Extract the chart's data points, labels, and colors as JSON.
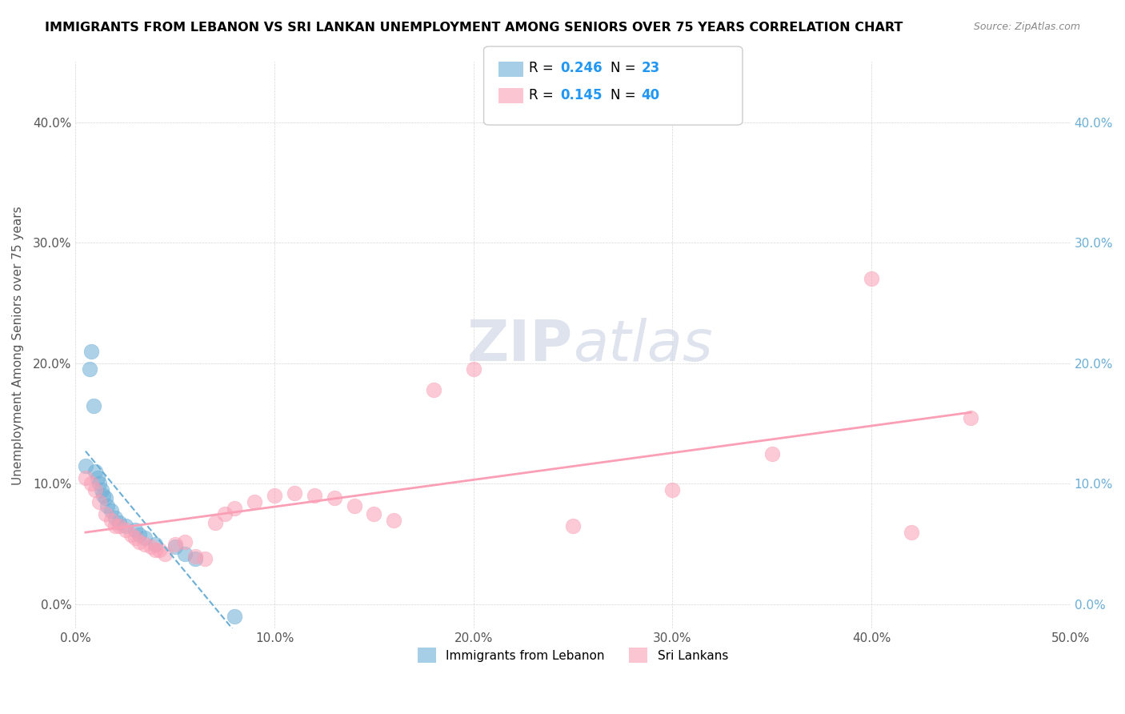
{
  "title": "IMMIGRANTS FROM LEBANON VS SRI LANKAN UNEMPLOYMENT AMONG SENIORS OVER 75 YEARS CORRELATION CHART",
  "source": "Source: ZipAtlas.com",
  "xlabel": "",
  "ylabel": "Unemployment Among Seniors over 75 years",
  "xlim": [
    0.0,
    0.5
  ],
  "ylim": [
    -0.02,
    0.45
  ],
  "yticks": [
    0.0,
    0.1,
    0.2,
    0.3,
    0.4
  ],
  "ytick_labels": [
    "0.0%",
    "10.0%",
    "20.0%",
    "30.0%",
    "40.0%"
  ],
  "xticks": [
    0.0,
    0.1,
    0.2,
    0.3,
    0.4,
    0.5
  ],
  "xtick_labels": [
    "0.0%",
    "10.0%",
    "20.0%",
    "30.0%",
    "40.0%",
    "50.0%"
  ],
  "legend_items": [
    "Immigrants from Lebanon",
    "Sri Lankans"
  ],
  "r_lebanon": 0.246,
  "n_lebanon": 23,
  "r_srilanka": 0.145,
  "n_srilanka": 40,
  "color_lebanon": "#6baed6",
  "color_srilanka": "#fa9fb5",
  "lebanon_x": [
    0.005,
    0.007,
    0.008,
    0.009,
    0.01,
    0.011,
    0.012,
    0.013,
    0.014,
    0.015,
    0.016,
    0.018,
    0.02,
    0.022,
    0.025,
    0.03,
    0.032,
    0.035,
    0.04,
    0.05,
    0.055,
    0.06,
    0.08
  ],
  "lebanon_y": [
    0.115,
    0.195,
    0.21,
    0.165,
    0.11,
    0.105,
    0.1,
    0.095,
    0.09,
    0.088,
    0.082,
    0.078,
    0.072,
    0.068,
    0.065,
    0.062,
    0.058,
    0.055,
    0.05,
    0.048,
    0.042,
    0.038,
    -0.01
  ],
  "srilanka_x": [
    0.005,
    0.008,
    0.01,
    0.012,
    0.015,
    0.018,
    0.02,
    0.022,
    0.025,
    0.028,
    0.03,
    0.032,
    0.035,
    0.038,
    0.04,
    0.042,
    0.045,
    0.05,
    0.055,
    0.06,
    0.065,
    0.07,
    0.075,
    0.08,
    0.09,
    0.1,
    0.11,
    0.12,
    0.13,
    0.14,
    0.15,
    0.16,
    0.18,
    0.2,
    0.25,
    0.3,
    0.35,
    0.4,
    0.42,
    0.45
  ],
  "srilanka_y": [
    0.105,
    0.1,
    0.095,
    0.085,
    0.075,
    0.07,
    0.065,
    0.065,
    0.062,
    0.058,
    0.055,
    0.052,
    0.05,
    0.048,
    0.045,
    0.045,
    0.042,
    0.05,
    0.052,
    0.04,
    0.038,
    0.068,
    0.075,
    0.08,
    0.085,
    0.09,
    0.092,
    0.09,
    0.088,
    0.082,
    0.075,
    0.07,
    0.178,
    0.195,
    0.065,
    0.095,
    0.125,
    0.27,
    0.06,
    0.155
  ]
}
